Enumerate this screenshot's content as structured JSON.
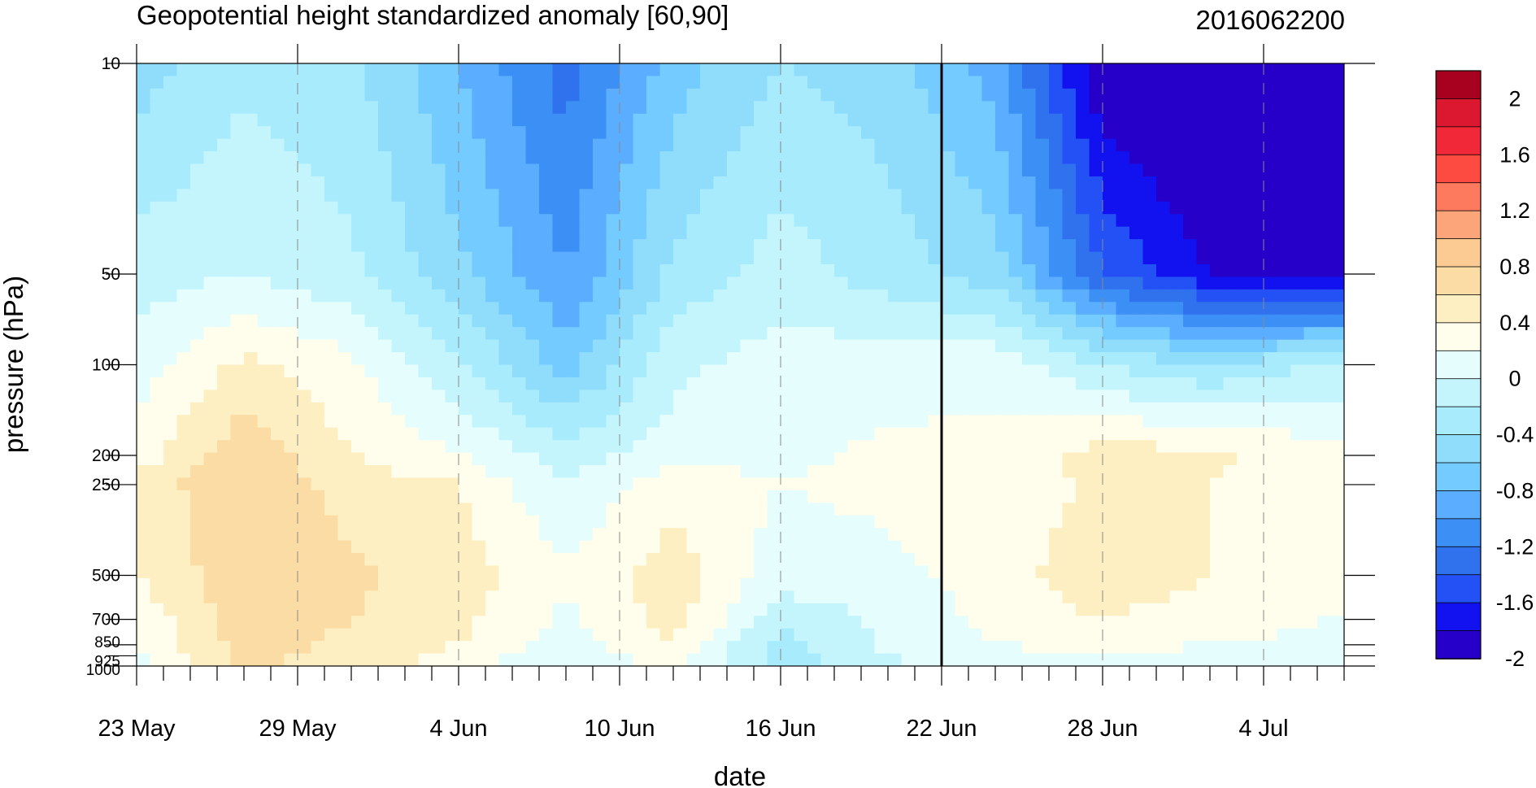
{
  "chart_data": {
    "type": "heatmap",
    "title": "Geopotential height standardized anomaly [60,90]",
    "right_title": "2016062200",
    "xlabel": "date",
    "ylabel": "pressure (hPa)",
    "x_ticks": [
      "23 May",
      "29 May",
      "4 Jun",
      "10 Jun",
      "16 Jun",
      "22 Jun",
      "28 Jun",
      "4 Jul"
    ],
    "x_range": [
      "23 May",
      "7 Jul"
    ],
    "y_ticks": [
      "10",
      "50",
      "100",
      "200",
      "250",
      "500",
      "700",
      "850",
      "925",
      "1000"
    ],
    "y_scale": "log",
    "y_range": [
      1000,
      10
    ],
    "marker_date": "22 Jun",
    "levels": [
      -2.2,
      -2.0,
      -1.8,
      -1.6,
      -1.4,
      -1.2,
      -1.0,
      -0.8,
      -0.6,
      -0.4,
      -0.2,
      0,
      0.2,
      0.4,
      0.6,
      0.8,
      1.0,
      1.2,
      1.4,
      1.6,
      1.8,
      2.0,
      2.2
    ],
    "colorbar_labels": [
      "2",
      "1.6",
      "1.2",
      "0.8",
      "0.4",
      "0",
      "-0.4",
      "-0.8",
      "-1.2",
      "-1.6",
      "-2"
    ],
    "colors": [
      "#2600c8",
      "#1212f0",
      "#2451f5",
      "#3071ee",
      "#3c8ff4",
      "#5aadff",
      "#74cbff",
      "#8fdcfb",
      "#a8ebfc",
      "#c4f5fd",
      "#e6fdfd",
      "#fffdeb",
      "#fdefc2",
      "#fbdca4",
      "#fbcb93",
      "#fca47a",
      "#fd7a5f",
      "#fd4b41",
      "#f02838",
      "#dc1830",
      "#a8001f"
    ],
    "days": [
      0,
      4,
      8,
      12,
      16,
      20,
      24,
      28,
      32,
      36,
      40,
      44
    ],
    "pressure_levels": [
      10,
      50,
      100,
      200,
      250,
      500,
      700,
      850,
      925,
      1000
    ],
    "values": [
      [
        -0.7,
        -0.45,
        -0.55,
        -1.0,
        -1.5,
        -0.9,
        -0.6,
        -0.7,
        -1.1,
        -2.2,
        -2.4,
        -2.4
      ],
      [
        -0.3,
        -0.2,
        -0.35,
        -0.75,
        -1.2,
        -0.55,
        -0.3,
        -0.5,
        -0.7,
        -1.6,
        -2.0,
        -2.1
      ],
      [
        -0.1,
        0.25,
        0.05,
        -0.35,
        -0.9,
        -0.25,
        -0.1,
        -0.1,
        -0.05,
        -0.4,
        -0.6,
        -0.4
      ],
      [
        0.1,
        0.55,
        0.2,
        0.0,
        -0.3,
        -0.1,
        -0.05,
        0.05,
        0.05,
        0.3,
        0.25,
        0.1
      ],
      [
        0.25,
        0.6,
        0.3,
        0.2,
        -0.2,
        0.15,
        0.0,
        0.05,
        0.05,
        0.25,
        0.2,
        0.1
      ],
      [
        0.2,
        0.55,
        0.45,
        0.3,
        0.05,
        0.3,
        -0.1,
        -0.05,
        0.1,
        0.35,
        0.2,
        0.05
      ],
      [
        0.05,
        0.5,
        0.4,
        0.25,
        -0.05,
        0.3,
        -0.35,
        -0.15,
        0.05,
        0.2,
        0.1,
        0.0
      ],
      [
        0.0,
        0.5,
        0.35,
        0.2,
        -0.1,
        0.2,
        -0.5,
        -0.15,
        0.0,
        0.05,
        0.0,
        -0.05
      ],
      [
        -0.05,
        0.45,
        0.3,
        0.15,
        -0.15,
        0.1,
        -0.5,
        -0.2,
        -0.05,
        0.0,
        -0.05,
        -0.1
      ],
      [
        -0.1,
        0.45,
        0.3,
        0.1,
        -0.2,
        0.1,
        -0.5,
        -0.25,
        -0.1,
        -0.05,
        -0.1,
        -0.15
      ]
    ]
  }
}
